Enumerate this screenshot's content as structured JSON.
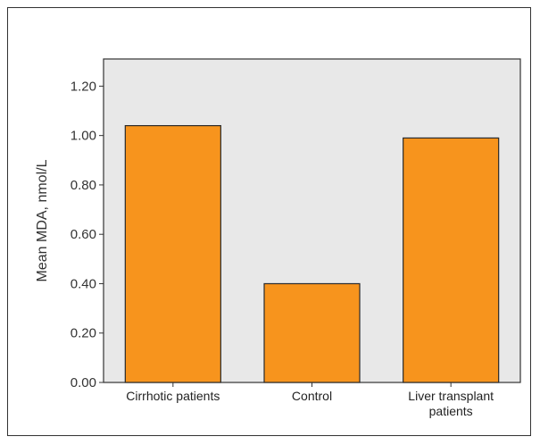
{
  "chart_data": {
    "type": "bar",
    "categories": [
      [
        "Cirrhotic patients"
      ],
      [
        "Control"
      ],
      [
        "Liver transplant",
        "patients"
      ]
    ],
    "values": [
      1.04,
      0.4,
      0.99
    ],
    "title": "",
    "xlabel": "",
    "ylabel": "Mean MDA, nmol/L",
    "ylim": [
      0,
      1.31
    ],
    "yticks": [
      "0.00",
      "0.20",
      "0.40",
      "0.60",
      "0.80",
      "1.00",
      "1.20"
    ],
    "grid": false,
    "colors": {
      "bar": "#F7941D",
      "bar_stroke": "#2a2a2a",
      "plot_bg": "#E8E8E8"
    }
  }
}
